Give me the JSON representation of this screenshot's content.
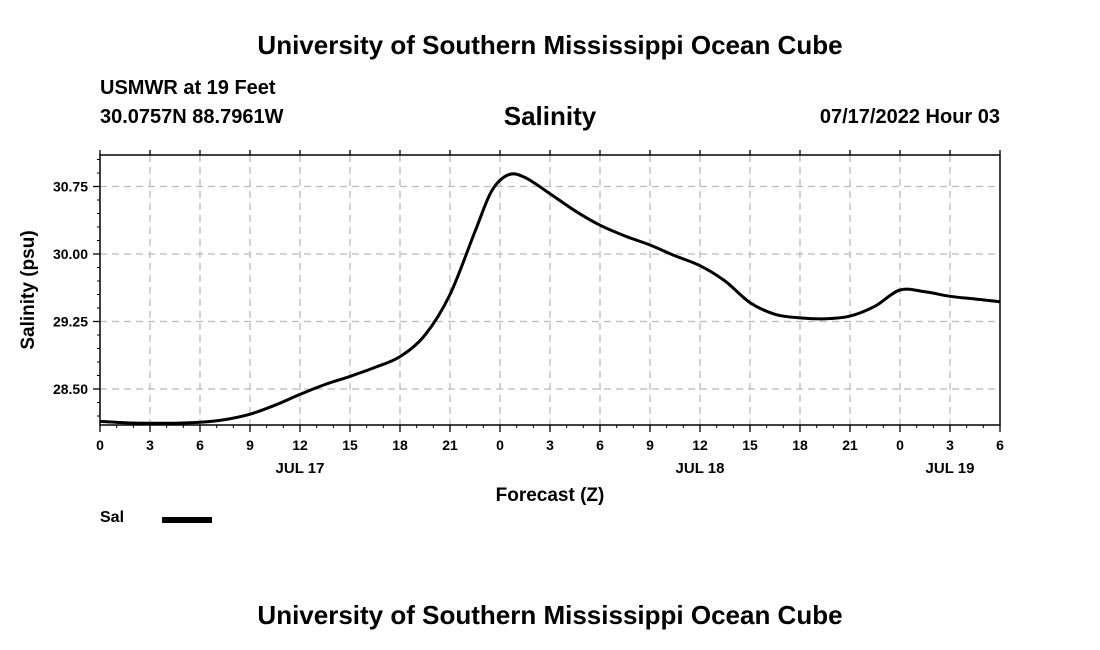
{
  "header": {
    "title": "University of Southern Mississippi Ocean Cube",
    "station": "USMWR at 19 Feet",
    "coords": "30.0757N  88.7961W",
    "chart_title": "Salinity",
    "datetime": "07/17/2022 Hour 03"
  },
  "footer": {
    "title": "University of Southern Mississippi Ocean Cube"
  },
  "legend": {
    "label": "Sal"
  },
  "colors": {
    "line": "#000000",
    "grid": "#bbbbbb",
    "background": "#ffffff"
  },
  "chart_data": {
    "type": "line",
    "title": "Salinity",
    "xlabel": "Forecast (Z)",
    "ylabel": "Salinity (psu)",
    "xlim": [
      0,
      54
    ],
    "ylim": [
      28.1,
      31.1
    ],
    "x_ticks": [
      0,
      3,
      6,
      9,
      12,
      15,
      18,
      21,
      24,
      27,
      30,
      33,
      36,
      39,
      42,
      45,
      48,
      51,
      54
    ],
    "x_tick_labels": [
      "0",
      "3",
      "6",
      "9",
      "12",
      "15",
      "18",
      "21",
      "0",
      "3",
      "6",
      "9",
      "12",
      "15",
      "18",
      "21",
      "0",
      "3",
      "6"
    ],
    "y_ticks": [
      28.5,
      29.25,
      30.0,
      30.75
    ],
    "y_tick_labels": [
      "28.50",
      "29.25",
      "30.00",
      "30.75"
    ],
    "day_labels": [
      {
        "x": 12,
        "label": "JUL 17"
      },
      {
        "x": 36,
        "label": "JUL 18"
      },
      {
        "x": 51,
        "label": "JUL 19"
      }
    ],
    "grid": true,
    "series": [
      {
        "name": "Sal",
        "x": [
          0,
          1.5,
          3,
          4.5,
          6,
          7.5,
          9,
          10.5,
          12,
          13.5,
          15,
          16.5,
          18,
          19.5,
          21,
          22.5,
          23.5,
          24.5,
          25.5,
          27,
          28.5,
          30,
          31.5,
          33,
          34.5,
          36,
          37.5,
          39,
          40.5,
          42,
          43.5,
          45,
          46.5,
          48,
          49.5,
          51,
          52.5,
          54
        ],
        "y": [
          28.14,
          28.125,
          28.12,
          28.12,
          28.13,
          28.16,
          28.22,
          28.32,
          28.44,
          28.55,
          28.64,
          28.74,
          28.86,
          29.1,
          29.55,
          30.25,
          30.7,
          30.88,
          30.85,
          30.67,
          30.48,
          30.32,
          30.2,
          30.1,
          29.98,
          29.87,
          29.7,
          29.46,
          29.33,
          29.29,
          29.28,
          29.31,
          29.42,
          29.6,
          29.58,
          29.53,
          29.5,
          29.47
        ]
      }
    ]
  }
}
